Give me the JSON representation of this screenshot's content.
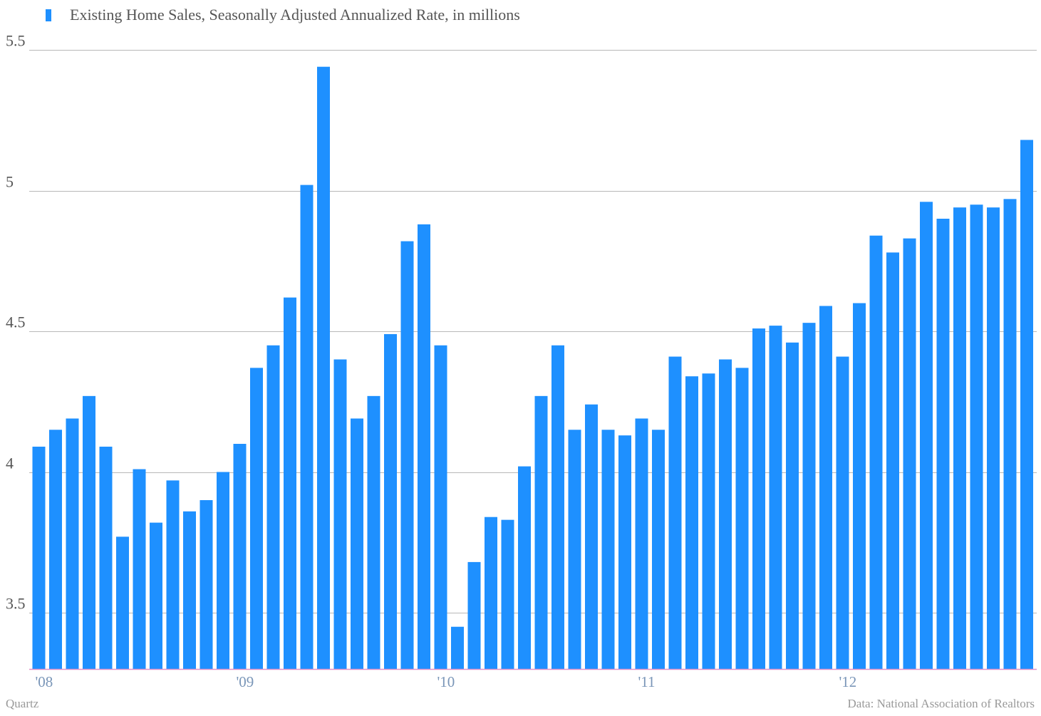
{
  "legend": {
    "label": "Existing Home Sales, Seasonally Adjusted Annualized Rate, in millions",
    "color": "#1e90ff"
  },
  "footer": {
    "credit": "Quartz",
    "source": "Data: National Association of Realtors"
  },
  "colors": {
    "bar": "#1e90ff",
    "grid": "#b8b8b8",
    "baseline": "#e090c8",
    "y_tick_text": "#555555",
    "x_tick_text": "#7a96b8"
  },
  "chart_data": {
    "type": "bar",
    "title": "",
    "xlabel": "",
    "ylabel": "",
    "ylim": [
      3.3,
      5.5
    ],
    "y_ticks": [
      3.5,
      4,
      4.5,
      5,
      5.5
    ],
    "y_tick_labels": [
      "3.5",
      "4",
      "4.5",
      "5",
      "5.5"
    ],
    "x_tick_labels": [
      {
        "label": "'08",
        "category": "2008-01"
      },
      {
        "label": "'09",
        "category": "2009-01"
      },
      {
        "label": "'10",
        "category": "2010-01"
      },
      {
        "label": "'11",
        "category": "2011-01"
      },
      {
        "label": "'12",
        "category": "2012-01"
      }
    ],
    "grid": true,
    "legend_position": "top-left",
    "categories": [
      "2008-01",
      "2008-02",
      "2008-03",
      "2008-04",
      "2008-05",
      "2008-06",
      "2008-07",
      "2008-08",
      "2008-09",
      "2008-10",
      "2008-11",
      "2008-12",
      "2009-01",
      "2009-02",
      "2009-03",
      "2009-04",
      "2009-05",
      "2009-06",
      "2009-07",
      "2009-08",
      "2009-09",
      "2009-10",
      "2009-11",
      "2009-12",
      "2010-01",
      "2010-02",
      "2010-03",
      "2010-04",
      "2010-05",
      "2010-06",
      "2010-07",
      "2010-08",
      "2010-09",
      "2010-10",
      "2010-11",
      "2010-12",
      "2011-01",
      "2011-02",
      "2011-03",
      "2011-04",
      "2011-05",
      "2011-06",
      "2011-07",
      "2011-08",
      "2011-09",
      "2011-10",
      "2011-11",
      "2011-12",
      "2012-01",
      "2012-02",
      "2012-03",
      "2012-04",
      "2012-05",
      "2012-06",
      "2012-07",
      "2012-08",
      "2012-09",
      "2012-10",
      "2012-11",
      "2012-12"
    ],
    "series": [
      {
        "name": "Existing Home Sales, Seasonally Adjusted Annualized Rate, in millions",
        "values": [
          4.09,
          4.15,
          4.19,
          4.27,
          4.09,
          3.77,
          4.01,
          3.82,
          3.97,
          3.86,
          3.9,
          4.0,
          4.1,
          4.37,
          4.45,
          4.62,
          5.02,
          5.44,
          4.4,
          4.19,
          4.27,
          4.49,
          4.82,
          4.88,
          4.45,
          3.45,
          3.68,
          3.84,
          3.83,
          4.02,
          4.27,
          4.45,
          4.15,
          4.24,
          4.15,
          4.13,
          4.19,
          4.15,
          4.41,
          4.34,
          4.35,
          4.4,
          4.37,
          4.51,
          4.52,
          4.46,
          4.53,
          4.59,
          4.41,
          4.6,
          4.84,
          4.78,
          4.83,
          4.96,
          4.9,
          4.94,
          4.95,
          4.94,
          4.97,
          5.18
        ]
      }
    ]
  }
}
